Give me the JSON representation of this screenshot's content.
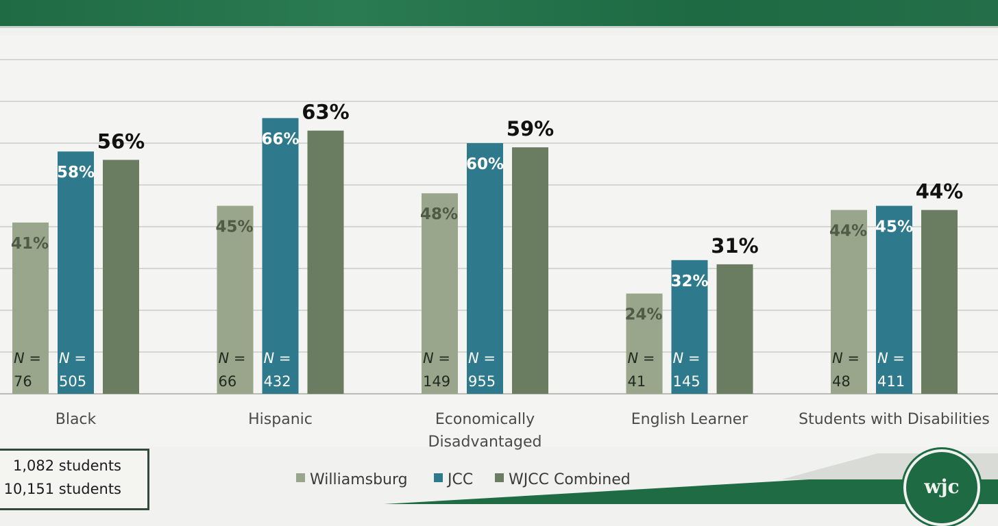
{
  "chart_data": {
    "type": "bar",
    "categories": [
      "Black",
      "Hispanic",
      "Economically Disadvantaged",
      "English Learner",
      "Students with Disabilities"
    ],
    "series": [
      {
        "name": "Williamsburg",
        "values": [
          41,
          45,
          48,
          24,
          44
        ],
        "labels": [
          "41%",
          "45%",
          "48%",
          "24%",
          "44%"
        ],
        "n": [
          "76",
          "66",
          "149",
          "41",
          "48"
        ],
        "color": "#9aa68b"
      },
      {
        "name": "JCC",
        "values": [
          58,
          66,
          60,
          32,
          45
        ],
        "labels": [
          "58%",
          "66%",
          "60%",
          "32%",
          "45%"
        ],
        "n": [
          "505",
          "432",
          "955",
          "145",
          "411"
        ],
        "color": "#2e7a8c"
      },
      {
        "name": "WJCC Combined",
        "values": [
          56,
          63,
          59,
          31,
          44
        ],
        "labels": [
          "56%",
          "63%",
          "59%",
          "31%",
          "44%"
        ],
        "color": "#6b7d60"
      }
    ],
    "n_prefix": "N =",
    "ylim": [
      0,
      80
    ],
    "grid": true,
    "legend_position": "bottom"
  },
  "summary_box": {
    "lines": [
      "1,082 students",
      "10,151 students"
    ]
  },
  "logo": {
    "text": "wjc"
  },
  "colors": {
    "banner": "#1f6b44",
    "background": "#f1f2ef",
    "gridline": "#c9ccc6"
  }
}
